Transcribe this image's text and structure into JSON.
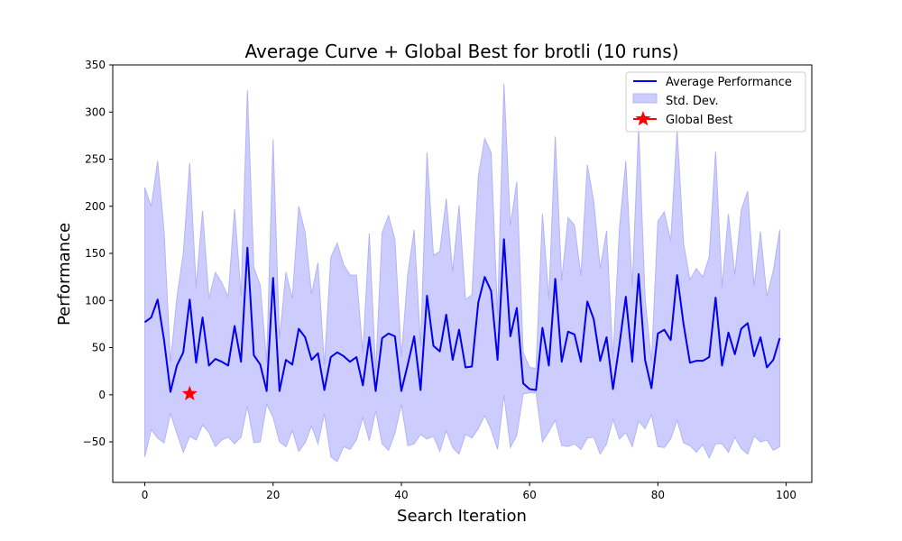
{
  "chart_data": {
    "type": "line",
    "title": "Average Curve + Global Best for brotli (10 runs)",
    "xlabel": "Search Iteration",
    "ylabel": "Performance",
    "xlim": [
      -5,
      104
    ],
    "ylim": [
      -93,
      350
    ],
    "xticks": [
      0,
      20,
      40,
      60,
      80,
      100
    ],
    "yticks": [
      -50,
      0,
      50,
      100,
      150,
      200,
      250,
      300,
      350
    ],
    "grid": false,
    "legend_position": "top-right",
    "colors": {
      "mean_line": "#0000ee",
      "band_fill": "#ccccff",
      "band_edge": "#b4b4f5",
      "global_best": "#ff0000"
    },
    "x": [
      0,
      1,
      2,
      3,
      4,
      5,
      6,
      7,
      8,
      9,
      10,
      11,
      12,
      13,
      14,
      15,
      16,
      17,
      18,
      19,
      20,
      21,
      22,
      23,
      24,
      25,
      26,
      27,
      28,
      29,
      30,
      31,
      32,
      33,
      34,
      35,
      36,
      37,
      38,
      39,
      40,
      41,
      42,
      43,
      44,
      45,
      46,
      47,
      48,
      49,
      50,
      51,
      52,
      53,
      54,
      55,
      56,
      57,
      58,
      59,
      60,
      61,
      62,
      63,
      64,
      65,
      66,
      67,
      68,
      69,
      70,
      71,
      72,
      73,
      74,
      75,
      76,
      77,
      78,
      79,
      80,
      81,
      82,
      83,
      84,
      85,
      86,
      87,
      88,
      89,
      90,
      91,
      92,
      93,
      94,
      95,
      96,
      97,
      98,
      99
    ],
    "series": [
      {
        "name": "Average Performance",
        "values": [
          77,
          82,
          101,
          58,
          3,
          31,
          45,
          101,
          34,
          82,
          31,
          38,
          35,
          31,
          73,
          35,
          156,
          42,
          32,
          4,
          124,
          4,
          37,
          32,
          70,
          61,
          37,
          44,
          5,
          40,
          45,
          41,
          35,
          40,
          10,
          61,
          4,
          60,
          65,
          62,
          4,
          32,
          62,
          5,
          105,
          52,
          46,
          85,
          37,
          69,
          29,
          30,
          98,
          125,
          110,
          37,
          165,
          62,
          92,
          12,
          6,
          5,
          71,
          31,
          123,
          35,
          67,
          64,
          35,
          99,
          80,
          36,
          61,
          6,
          53,
          104,
          35,
          128,
          37,
          7,
          65,
          69,
          58,
          127,
          75,
          34,
          36,
          36,
          40,
          103,
          31,
          66,
          43,
          70,
          76,
          41,
          61,
          29,
          37,
          60
        ]
      },
      {
        "name": "Std. Dev.",
        "upper": [
          220,
          200,
          248,
          174,
          34,
          103,
          150,
          246,
          114,
          195,
          102,
          130,
          119,
          104,
          197,
          105,
          323,
          135,
          116,
          34,
          271,
          59,
          130,
          102,
          200,
          172,
          107,
          140,
          31,
          146,
          161,
          138,
          127,
          127,
          44,
          171,
          25,
          172,
          190,
          165,
          40,
          128,
          175,
          52,
          257,
          148,
          152,
          208,
          130,
          201,
          101,
          106,
          232,
          272,
          257,
          85,
          330,
          179,
          226,
          45,
          29,
          28,
          192,
          101,
          274,
          121,
          188,
          180,
          126,
          244,
          205,
          134,
          174,
          38,
          176,
          248,
          114,
          284,
          103,
          35,
          184,
          194,
          163,
          281,
          161,
          122,
          134,
          125,
          146,
          258,
          114,
          192,
          127,
          196,
          216,
          115,
          173,
          104,
          132,
          175
        ],
        "lower": [
          -66,
          -37,
          -46,
          -51,
          -20,
          -41,
          -61,
          -44,
          -48,
          -32,
          -40,
          -55,
          -48,
          -45,
          -52,
          -45,
          -12,
          -51,
          -50,
          -10,
          -24,
          -50,
          -55,
          -38,
          -60,
          -51,
          -33,
          -52,
          -20,
          -66,
          -71,
          -55,
          -58,
          -48,
          -24,
          -49,
          -17,
          -52,
          -59,
          -41,
          -10,
          -54,
          -52,
          -42,
          -47,
          -44,
          -60,
          -38,
          -56,
          -63,
          -42,
          -46,
          -36,
          -22,
          -37,
          -58,
          0,
          -56,
          -43,
          1,
          2,
          2,
          -50,
          -39,
          -27,
          -54,
          -55,
          -52,
          -58,
          -46,
          -45,
          -63,
          -52,
          -26,
          -47,
          -40,
          -55,
          -28,
          -36,
          -21,
          -55,
          -56,
          -47,
          -27,
          -51,
          -54,
          -61,
          -53,
          -67,
          -52,
          -52,
          -61,
          -45,
          -57,
          -63,
          -44,
          -50,
          -48,
          -59,
          -55
        ]
      },
      {
        "name": "Global Best",
        "x": 7,
        "y": 1
      }
    ]
  }
}
